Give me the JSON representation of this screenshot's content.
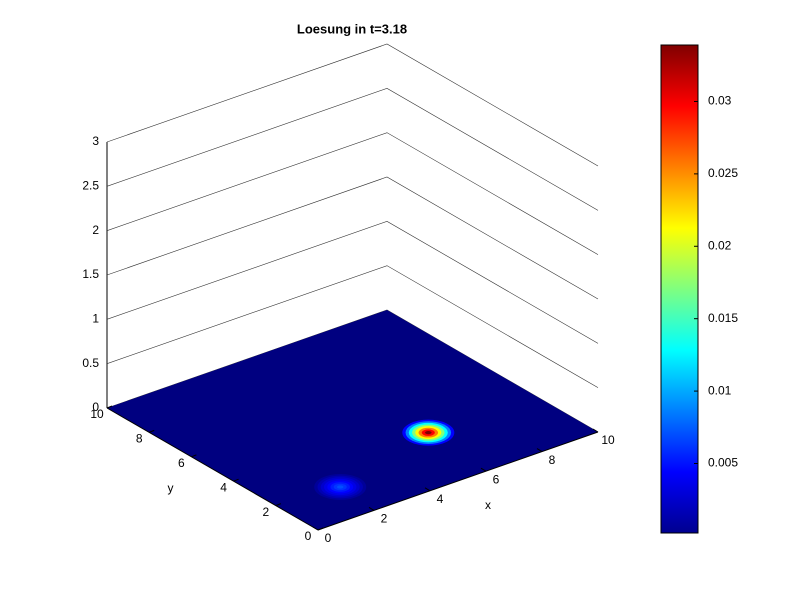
{
  "chart_data": {
    "type": "surface",
    "title": "Loesung in t=3.18",
    "xlabel": "x",
    "ylabel": "y",
    "xlim": [
      0,
      10
    ],
    "xticks": [
      0,
      2,
      4,
      6,
      8,
      10
    ],
    "ylim": [
      0,
      10
    ],
    "yticks": [
      0,
      2,
      4,
      6,
      8,
      10
    ],
    "zlim": [
      0,
      3
    ],
    "zticks": [
      0,
      0.5,
      1,
      1.5,
      2,
      2.5,
      3
    ],
    "clim": [
      0.0002,
      0.0339
    ],
    "cticks": [
      0.005,
      0.01,
      0.015,
      0.02,
      0.025,
      0.03
    ],
    "colormap": "jet",
    "grid": true,
    "peaks": [
      {
        "x": 6.2,
        "y": 3.0,
        "value": 0.034
      },
      {
        "x": 2.15,
        "y": 1.8,
        "value": 0.007
      }
    ]
  }
}
